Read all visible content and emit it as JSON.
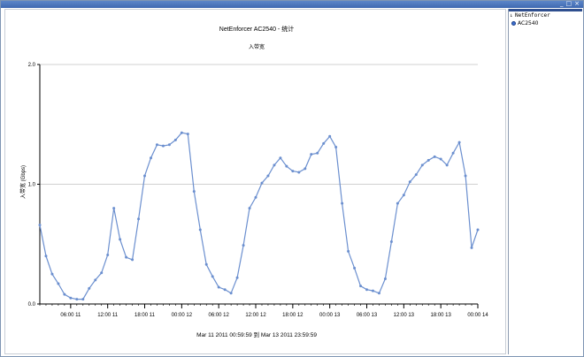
{
  "window": {
    "controls": [
      "_",
      "□",
      "×"
    ]
  },
  "tree": {
    "root_label": "NetEnforcer",
    "root_expander": "↓",
    "child_label": "AC2540"
  },
  "colors": {
    "series": "#6b8fcf",
    "grid": "#c0c0c0",
    "axis": "#000000"
  },
  "chart_data": {
    "type": "line",
    "title": "NetEnforcer AC2540 - 统计",
    "subtitle": "入带宽",
    "ylabel": "入带宽 (Gbps)",
    "xlabel": "",
    "ylim": [
      0,
      2.0
    ],
    "yticks": [
      0.0,
      1.0,
      2.0
    ],
    "ytick_labels": [
      "0.0",
      "1.0",
      "2.0"
    ],
    "grid": true,
    "xlim": [
      "Mar 11 2011 00:59:59",
      "Mar 14 2011 00:00:00"
    ],
    "xtick_labels": [
      "06:00 11",
      "12:00 11",
      "18:00 11",
      "00:00 12",
      "06:00 12",
      "12:00 12",
      "18:00 12",
      "00:00 13",
      "06:00 13",
      "12:00 13",
      "18:00 13",
      "00:00 14"
    ],
    "date_range_caption": "Mar 11 2011  00:59:59  到  Mar 13 2011  23:59:59",
    "series": [
      {
        "x": [
          "Mar 11 2011 01:00",
          "Mar 11 2011 02:00",
          "Mar 11 2011 03:00",
          "Mar 11 2011 04:00",
          "Mar 11 2011 05:00",
          "Mar 11 2011 06:00",
          "Mar 11 2011 07:00",
          "Mar 11 2011 08:00",
          "Mar 11 2011 09:00",
          "Mar 11 2011 10:00",
          "Mar 11 2011 11:00",
          "Mar 11 2011 12:00",
          "Mar 11 2011 13:00",
          "Mar 11 2011 14:00",
          "Mar 11 2011 15:00",
          "Mar 11 2011 16:00",
          "Mar 11 2011 17:00",
          "Mar 11 2011 18:00",
          "Mar 11 2011 19:00",
          "Mar 11 2011 20:00",
          "Mar 11 2011 21:00",
          "Mar 11 2011 22:00",
          "Mar 11 2011 23:00",
          "Mar 12 2011 00:00",
          "Mar 12 2011 01:00",
          "Mar 12 2011 02:00",
          "Mar 12 2011 03:00",
          "Mar 12 2011 04:00",
          "Mar 12 2011 05:00",
          "Mar 12 2011 06:00",
          "Mar 12 2011 07:00",
          "Mar 12 2011 08:00",
          "Mar 12 2011 09:00",
          "Mar 12 2011 10:00",
          "Mar 12 2011 11:00",
          "Mar 12 2011 12:00",
          "Mar 12 2011 13:00",
          "Mar 12 2011 14:00",
          "Mar 12 2011 15:00",
          "Mar 12 2011 16:00",
          "Mar 12 2011 17:00",
          "Mar 12 2011 18:00",
          "Mar 12 2011 19:00",
          "Mar 12 2011 20:00",
          "Mar 12 2011 21:00",
          "Mar 12 2011 22:00",
          "Mar 12 2011 23:00",
          "Mar 13 2011 00:00",
          "Mar 13 2011 01:00",
          "Mar 13 2011 02:00",
          "Mar 13 2011 03:00",
          "Mar 13 2011 04:00",
          "Mar 13 2011 05:00",
          "Mar 13 2011 06:00",
          "Mar 13 2011 07:00",
          "Mar 13 2011 08:00",
          "Mar 13 2011 09:00",
          "Mar 13 2011 10:00",
          "Mar 13 2011 11:00",
          "Mar 13 2011 12:00",
          "Mar 13 2011 13:00",
          "Mar 13 2011 14:00",
          "Mar 13 2011 15:00",
          "Mar 13 2011 16:00",
          "Mar 13 2011 17:00",
          "Mar 13 2011 18:00",
          "Mar 13 2011 19:00",
          "Mar 13 2011 20:00",
          "Mar 13 2011 21:00",
          "Mar 13 2011 22:00",
          "Mar 13 2011 23:00",
          "Mar 14 2011 00:00"
        ],
        "values": [
          0.66,
          0.4,
          0.25,
          0.17,
          0.08,
          0.05,
          0.04,
          0.04,
          0.13,
          0.2,
          0.26,
          0.41,
          0.8,
          0.54,
          0.39,
          0.37,
          0.71,
          1.07,
          1.22,
          1.33,
          1.32,
          1.33,
          1.37,
          1.43,
          1.42,
          0.94,
          0.62,
          0.33,
          0.23,
          0.14,
          0.12,
          0.09,
          0.22,
          0.49,
          0.8,
          0.89,
          1.01,
          1.07,
          1.16,
          1.22,
          1.15,
          1.11,
          1.1,
          1.13,
          1.25,
          1.26,
          1.34,
          1.4,
          1.31,
          0.84,
          0.44,
          0.3,
          0.15,
          0.12,
          0.11,
          0.09,
          0.21,
          0.52,
          0.84,
          0.91,
          1.02,
          1.08,
          1.16,
          1.2,
          1.23,
          1.21,
          1.16,
          1.26,
          1.35,
          1.07,
          0.47,
          0.62
        ]
      }
    ]
  }
}
